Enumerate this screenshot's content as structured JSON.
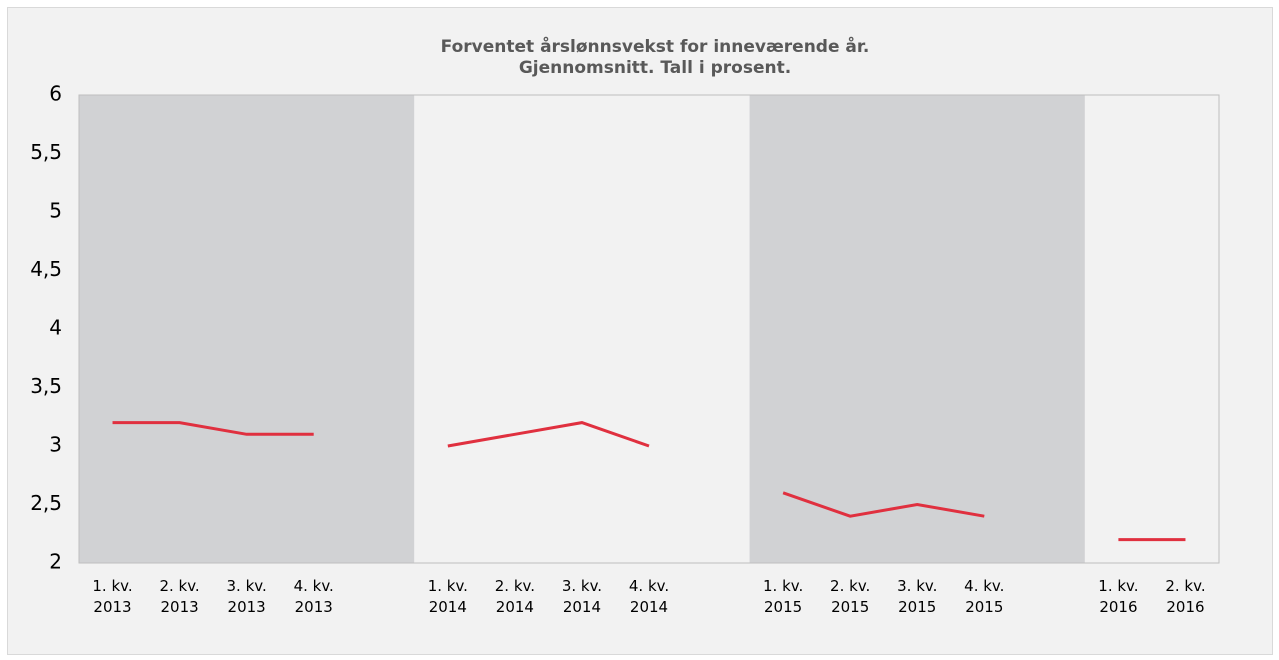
{
  "chart_data": {
    "type": "line",
    "title": [
      "Forventet årslønnsvekst for inneværende år.",
      "Gjennomsnitt. Tall i prosent."
    ],
    "categories": [
      "1. kv. 2013",
      "2. kv. 2013",
      "3. kv. 2013",
      "4. kv. 2013",
      null,
      "1. kv. 2014",
      "2. kv. 2014",
      "3. kv. 2014",
      "4. kv. 2014",
      null,
      "1. kv. 2015",
      "2. kv. 2015",
      "3. kv. 2015",
      "4. kv. 2015",
      null,
      "1. kv. 2016",
      "2. kv. 2016"
    ],
    "values": [
      3.2,
      3.2,
      3.1,
      3.1,
      null,
      3.0,
      3.1,
      3.2,
      3.0,
      null,
      2.6,
      2.4,
      2.5,
      2.4,
      null,
      2.2,
      2.2
    ],
    "color": "#e0303f",
    "band_colors": [
      "#d1d2d4",
      "#f2f2f2"
    ],
    "ylim": [
      2,
      6
    ],
    "yticks": [
      2,
      {
        "value": 2.5,
        "label": "2,5"
      },
      3,
      {
        "value": 3.5,
        "label": "3,5"
      },
      4,
      {
        "value": 4.5,
        "label": "4,5"
      },
      5,
      {
        "value": 5.5,
        "label": "5,5"
      },
      6
    ],
    "grid": false
  }
}
